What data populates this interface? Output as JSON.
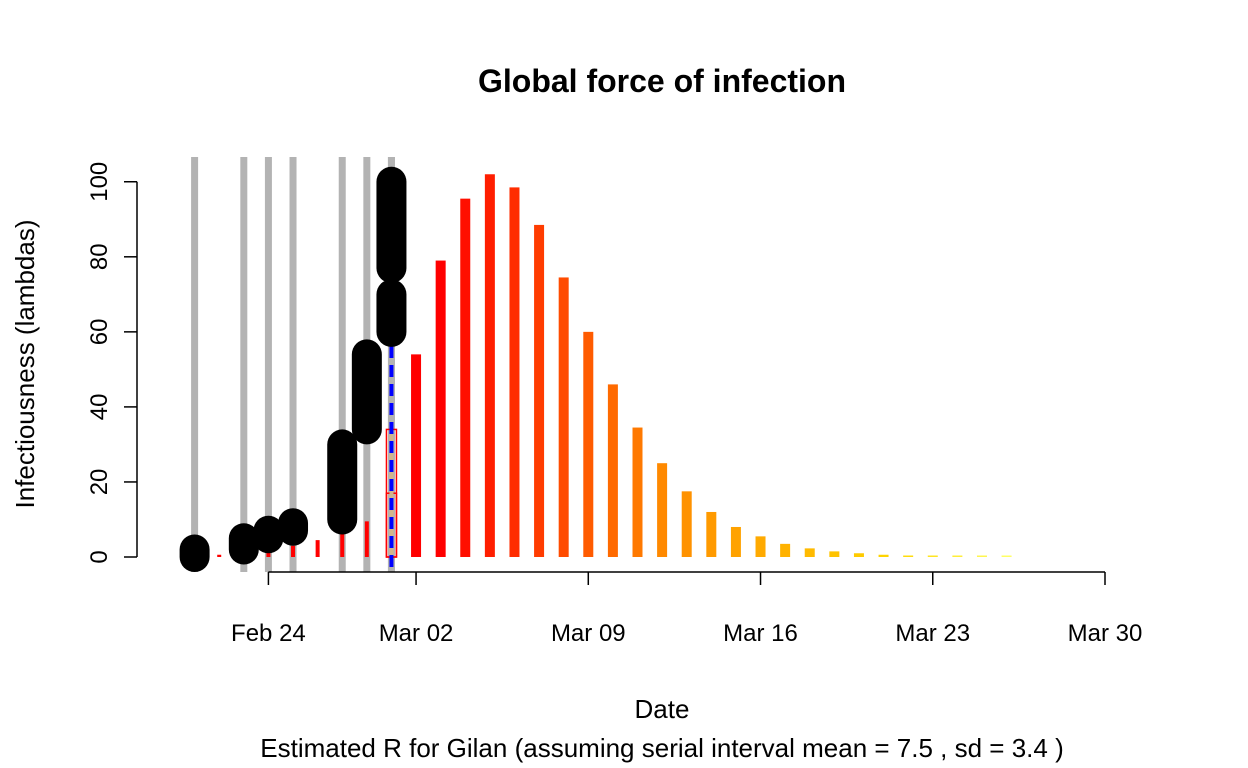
{
  "chart_data": {
    "type": "bar",
    "title": "Global force of infection",
    "xlabel": "Date",
    "ylabel": "Infectiousness (lambdas)",
    "subtitle": "Estimated R for Gilan (assuming serial interval mean = 7.5 , sd = 3.4 )",
    "x_axis": {
      "range": [
        "2026-02-20",
        "2026-03-30"
      ],
      "ticks": [
        {
          "date": "2026-02-24",
          "label": "Feb 24"
        },
        {
          "date": "2026-03-02",
          "label": "Mar 02"
        },
        {
          "date": "2026-03-09",
          "label": "Mar 09"
        },
        {
          "date": "2026-03-16",
          "label": "Mar 16"
        },
        {
          "date": "2026-03-23",
          "label": "Mar 23"
        },
        {
          "date": "2026-03-30",
          "label": "Mar 30"
        }
      ]
    },
    "y_axis": {
      "range": [
        0,
        105
      ],
      "ticks": [
        0,
        20,
        40,
        60,
        80,
        100
      ]
    },
    "grid": false,
    "lambda_bars": [
      {
        "date": "2026-02-21",
        "value": 0.3
      },
      {
        "date": "2026-02-22",
        "value": 0.6
      },
      {
        "date": "2026-02-23",
        "value": 1.5
      },
      {
        "date": "2026-02-24",
        "value": 2.2
      },
      {
        "date": "2026-02-25",
        "value": 3.0
      },
      {
        "date": "2026-02-26",
        "value": 4.5
      },
      {
        "date": "2026-02-27",
        "value": 6.5
      },
      {
        "date": "2026-02-28",
        "value": 9.5
      },
      {
        "date": "2026-02-29",
        "value": 17
      },
      {
        "date": "2026-03-01",
        "value": 34
      },
      {
        "date": "2026-03-02",
        "value": 54
      },
      {
        "date": "2026-03-03",
        "value": 79
      },
      {
        "date": "2026-03-04",
        "value": 95.5
      },
      {
        "date": "2026-03-05",
        "value": 102
      },
      {
        "date": "2026-03-06",
        "value": 98.5
      },
      {
        "date": "2026-03-07",
        "value": 88.5
      },
      {
        "date": "2026-03-08",
        "value": 74.5
      },
      {
        "date": "2026-03-09",
        "value": 60
      },
      {
        "date": "2026-03-10",
        "value": 46
      },
      {
        "date": "2026-03-11",
        "value": 34.5
      },
      {
        "date": "2026-03-12",
        "value": 25
      },
      {
        "date": "2026-03-13",
        "value": 17.5
      },
      {
        "date": "2026-03-14",
        "value": 12
      },
      {
        "date": "2026-03-15",
        "value": 8
      },
      {
        "date": "2026-03-16",
        "value": 5.5
      },
      {
        "date": "2026-03-17",
        "value": 3.5
      },
      {
        "date": "2026-03-18",
        "value": 2.3
      },
      {
        "date": "2026-03-19",
        "value": 1.5
      },
      {
        "date": "2026-03-20",
        "value": 1.0
      },
      {
        "date": "2026-03-21",
        "value": 0.6
      },
      {
        "date": "2026-03-22",
        "value": 0.4
      },
      {
        "date": "2026-03-23",
        "value": 0.25
      },
      {
        "date": "2026-03-24",
        "value": 0.15
      },
      {
        "date": "2026-03-25",
        "value": 0.1
      },
      {
        "date": "2026-03-26",
        "value": 0.05
      }
    ],
    "case_date_lines": [
      "2026-02-21",
      "2026-02-23",
      "2026-02-24",
      "2026-02-25",
      "2026-02-27",
      "2026-02-28",
      "2026-02-29",
      "2026-03-01"
    ],
    "cumulative_case_segments": [
      {
        "date": "2026-02-21",
        "from": 0,
        "to": 2
      },
      {
        "date": "2026-02-23",
        "from": 2,
        "to": 5
      },
      {
        "date": "2026-02-24",
        "from": 5,
        "to": 7
      },
      {
        "date": "2026-02-25",
        "from": 7,
        "to": 9
      },
      {
        "date": "2026-02-27",
        "from": 10,
        "to": 30
      },
      {
        "date": "2026-02-28",
        "from": 34,
        "to": 54
      },
      {
        "date": "2026-02-29",
        "from": 60,
        "to": 70
      },
      {
        "date": "2026-03-01",
        "from": 77,
        "to": 100
      }
    ],
    "reference_line": {
      "date": "2026-03-01",
      "color": "#0000ff",
      "style": "dashed"
    },
    "colors": {
      "case_lines": "#b3b3b3",
      "segments": "#000000",
      "bar_gradient": [
        "#ff0000",
        "#ff4500",
        "#ff8c00",
        "#ffb000",
        "#ffd700",
        "#ffff66"
      ],
      "observed_bar_fill": "#d2b48c"
    }
  }
}
